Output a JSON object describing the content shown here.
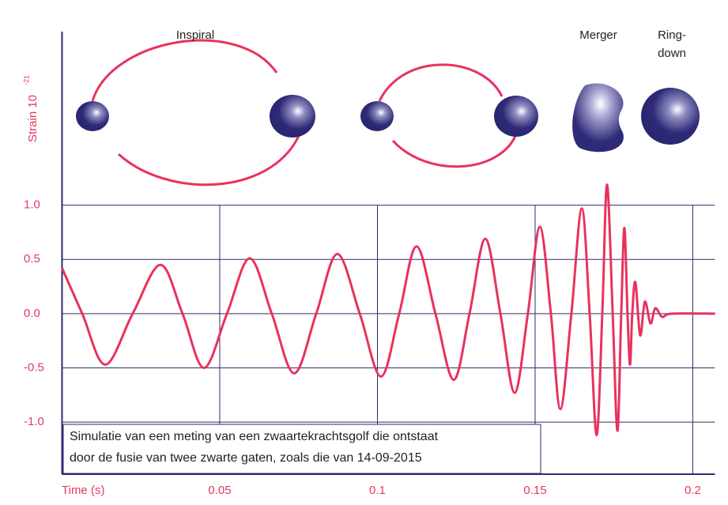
{
  "chart_data": {
    "type": "line",
    "stage_labels": {
      "inspiral": "Inspiral",
      "merger": "Merger",
      "ringdown": [
        "Ring-",
        "down"
      ]
    },
    "y_label": "Strain 10",
    "y_label_exponent": "-21",
    "x_label": "Time (s)",
    "annotation": [
      "Simulatie van een meting van een zwaartekrachtsgolf die ontstaat",
      "door de fusie van twee zwarte gaten, zoals die van 14-09-2015"
    ],
    "xlim": [
      0,
      0.207
    ],
    "ylim": [
      -1.48,
      2.6
    ],
    "xticks": [
      0.05,
      0.1,
      0.15,
      0.2
    ],
    "yticks": [
      {
        "value": 1.0,
        "label": "1.0"
      },
      {
        "value": 0.5,
        "label": "0.5"
      },
      {
        "value": 0.0,
        "label": "0.0"
      },
      {
        "value": -0.5,
        "label": "-0.5"
      },
      {
        "value": -1.0,
        "label": "-1.0"
      }
    ],
    "grid": true,
    "x": [
      0.0,
      0.0064,
      0.0137,
      0.0224,
      0.0312,
      0.0382,
      0.045,
      0.0523,
      0.0595,
      0.0665,
      0.0736,
      0.0806,
      0.0873,
      0.0944,
      0.1011,
      0.1069,
      0.1124,
      0.1184,
      0.1242,
      0.1292,
      0.1342,
      0.139,
      0.1435,
      0.1477,
      0.1515,
      0.155,
      0.158,
      0.1615,
      0.1648,
      0.1673,
      0.1695,
      0.1713,
      0.1728,
      0.1746,
      0.1761,
      0.1773,
      0.1783,
      0.1793,
      0.1801,
      0.1808,
      0.1818,
      0.1833,
      0.1848,
      0.1866,
      0.1881,
      0.1903,
      0.1933,
      0.2071
    ],
    "series": [
      {
        "color": "#e8325c",
        "values": [
          0.42,
          0,
          -0.47,
          0,
          0.45,
          0,
          -0.5,
          0,
          0.51,
          0,
          -0.55,
          0,
          0.55,
          0,
          -0.58,
          0,
          0.62,
          0,
          -0.61,
          0,
          0.69,
          0,
          -0.73,
          0,
          0.8,
          0,
          -0.88,
          0,
          0.97,
          0,
          -1.12,
          0,
          1.19,
          0,
          -1.08,
          0,
          0.79,
          0,
          -0.47,
          0,
          0.29,
          -0.2,
          0.11,
          -0.09,
          0.05,
          -0.03,
          0,
          0
        ]
      }
    ]
  }
}
